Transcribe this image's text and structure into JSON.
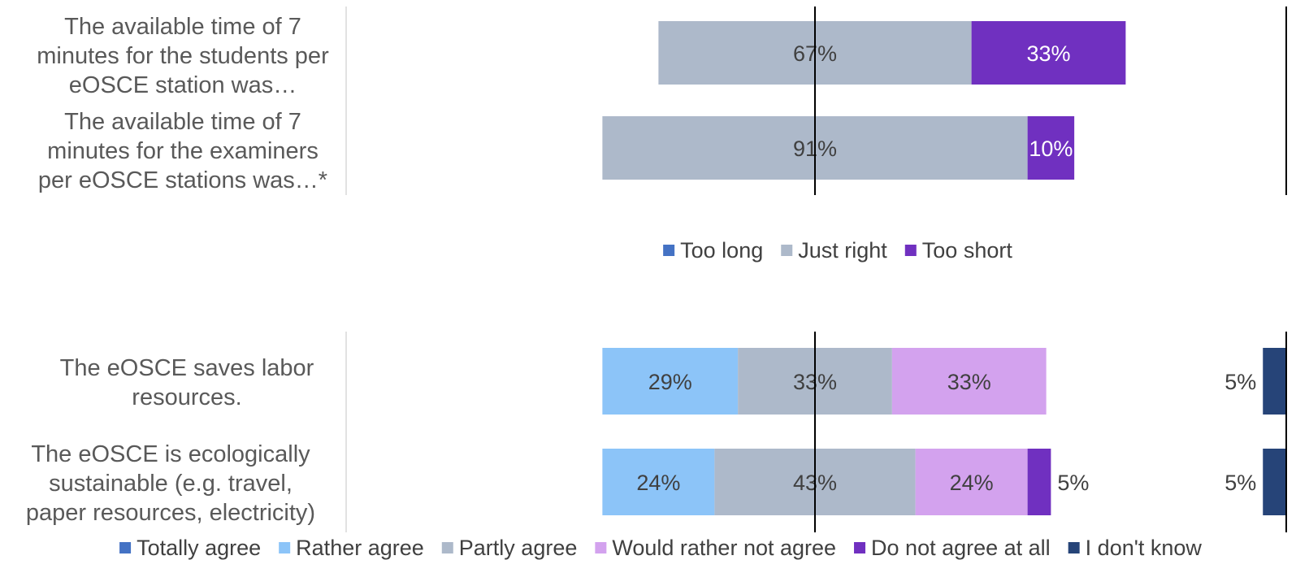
{
  "chart_data": [
    {
      "type": "bar",
      "orientation": "horizontal",
      "stacked": true,
      "layout": "diverging",
      "categories": [
        "The available time of 7 minutes for the students per eOSCE station was…",
        "The available time of 7 minutes for the examiners per eOSCE stations was…*"
      ],
      "series": [
        {
          "name": "Too long",
          "values": [
            0,
            0
          ],
          "color": "#4472c4"
        },
        {
          "name": "Just right",
          "values": [
            67,
            91
          ],
          "color": "#adb9ca"
        },
        {
          "name": "Too short",
          "values": [
            33,
            10
          ],
          "color": "#7030c0"
        }
      ],
      "data_labels": [
        [
          "",
          "67%",
          "33%"
        ],
        [
          "",
          "91%",
          "10%"
        ]
      ],
      "legend": "bottom",
      "grid": false
    },
    {
      "type": "bar",
      "orientation": "horizontal",
      "stacked": true,
      "layout": "diverging",
      "categories": [
        "The eOSCE saves labor resources.",
        "The eOSCE is ecologically sustainable (e.g. travel, paper resources, electricity)"
      ],
      "series": [
        {
          "name": "Totally agree",
          "values": [
            0,
            0
          ],
          "color": "#4472c4"
        },
        {
          "name": "Rather agree",
          "values": [
            29,
            24
          ],
          "color": "#8cc4f8"
        },
        {
          "name": "Partly agree",
          "values": [
            33,
            43
          ],
          "color": "#adb9ca"
        },
        {
          "name": "Would rather not agree",
          "values": [
            33,
            24
          ],
          "color": "#d3a2ee"
        },
        {
          "name": "Do not agree at all",
          "values": [
            0,
            5
          ],
          "color": "#7030c0"
        },
        {
          "name": "I don't know",
          "values": [
            5,
            5
          ],
          "color": "#264478"
        }
      ],
      "data_labels": [
        [
          "",
          "29%",
          "33%",
          "33%",
          "",
          "5%"
        ],
        [
          "",
          "24%",
          "43%",
          "24%",
          "5%",
          "5%"
        ]
      ],
      "legend": "bottom",
      "grid": false
    }
  ]
}
